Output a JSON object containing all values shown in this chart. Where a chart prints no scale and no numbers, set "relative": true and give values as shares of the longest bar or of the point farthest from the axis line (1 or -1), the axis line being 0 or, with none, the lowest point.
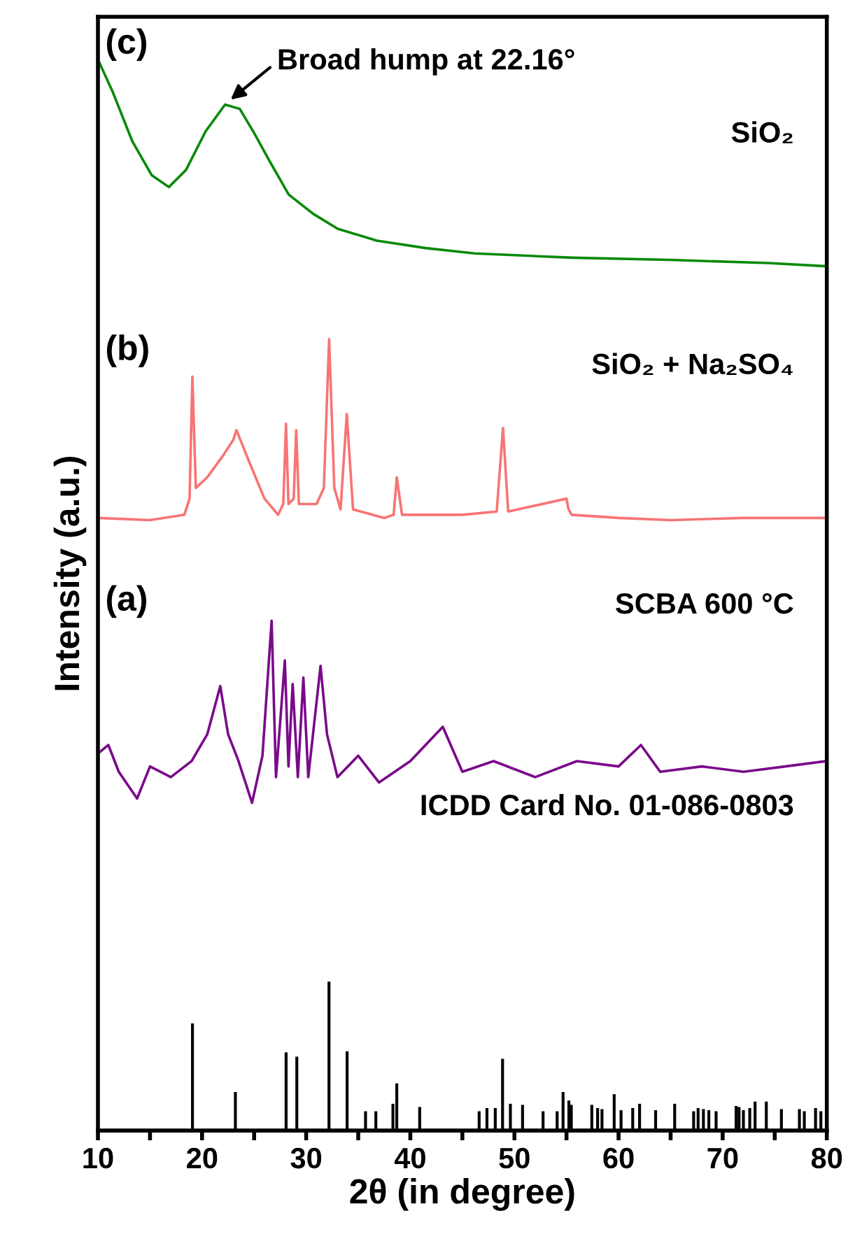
{
  "chart_data": {
    "type": "line",
    "relative": true,
    "xlabel": "2θ (in degree)",
    "ylabel": "Intensity (a.u.)",
    "xlim": [
      10,
      80
    ],
    "xticks": [
      10,
      {
        "value": 15,
        "label": null
      },
      20,
      {
        "value": 25,
        "label": null
      },
      30,
      {
        "value": 35,
        "label": null
      },
      40,
      {
        "value": 45,
        "label": null
      },
      50,
      {
        "value": 55,
        "label": null
      },
      60,
      {
        "value": 65,
        "label": null
      },
      70,
      {
        "value": 75,
        "label": null
      },
      80
    ],
    "tick_labels": "x",
    "grid": false,
    "legend": false,
    "marker": "none",
    "line_style": "solid",
    "annotations": [
      "(c)",
      "SiO₂",
      "(b)",
      "SiO₂ + Na₂SO₄",
      "(a)",
      "SCBA 600 °C",
      "ICDD Card No. 01-086-0803",
      {
        "text": "Broad hump at 22.16°",
        "x": 22.16,
        "y": 0.958
      }
    ],
    "series": [
      {
        "color": "#0a8a0a",
        "x": [
          10,
          11.41,
          13.29,
          15.17,
          16.81,
          18.46,
          20.34,
          22.21,
          23.62,
          25.03,
          26.44,
          28.32,
          30.67,
          33.02,
          36.78,
          41.48,
          46.17,
          55.57,
          64.97,
          74.36,
          80
        ],
        "values": [
          1,
          0.97,
          0.924,
          0.892,
          0.881,
          0.897,
          0.933,
          0.958,
          0.954,
          0.931,
          0.906,
          0.874,
          0.856,
          0.842,
          0.831,
          0.824,
          0.819,
          0.815,
          0.813,
          0.81,
          0.807
        ]
      },
      {
        "color": "#f87474",
        "x": [
          10,
          15,
          18.3,
          18.8,
          19.07,
          19.4,
          20.5,
          22.0,
          23.0,
          23.3,
          24.5,
          26,
          27.3,
          27.8,
          28.06,
          28.3,
          28.8,
          29.04,
          29.3,
          31.0,
          31.7,
          32.2,
          32.7,
          33.3,
          33.9,
          34.5,
          37.5,
          38.4,
          38.7,
          39.2,
          45,
          48.3,
          48.9,
          49.4,
          55,
          55.2,
          55.5,
          60,
          65,
          72,
          80
        ],
        "values": [
          0.572,
          0.57,
          0.575,
          0.59,
          0.704,
          0.6,
          0.61,
          0.63,
          0.645,
          0.654,
          0.625,
          0.59,
          0.575,
          0.585,
          0.66,
          0.585,
          0.59,
          0.654,
          0.585,
          0.585,
          0.6,
          0.739,
          0.6,
          0.58,
          0.669,
          0.58,
          0.572,
          0.575,
          0.61,
          0.575,
          0.575,
          0.578,
          0.656,
          0.578,
          0.59,
          0.58,
          0.575,
          0.572,
          0.57,
          0.572,
          0.572
        ]
      },
      {
        "color": "#7a0a8a",
        "x": [
          10,
          11,
          12,
          13.76,
          15,
          17,
          19,
          20.5,
          21.75,
          22.5,
          23.5,
          24.8,
          25.8,
          26.68,
          27.1,
          27.95,
          28.3,
          28.7,
          29.2,
          29.73,
          30.2,
          31.38,
          32.0,
          33,
          35,
          37,
          40,
          43.12,
          45,
          48,
          52,
          56,
          60,
          62.15,
          64,
          68,
          72,
          76,
          80
        ],
        "values": [
          0.352,
          0.36,
          0.335,
          0.31,
          0.34,
          0.33,
          0.345,
          0.37,
          0.415,
          0.37,
          0.345,
          0.306,
          0.35,
          0.476,
          0.33,
          0.439,
          0.34,
          0.417,
          0.33,
          0.423,
          0.33,
          0.434,
          0.37,
          0.33,
          0.35,
          0.325,
          0.345,
          0.377,
          0.335,
          0.345,
          0.33,
          0.345,
          0.34,
          0.36,
          0.335,
          0.34,
          0.335,
          0.34,
          0.345
        ]
      },
      {
        "type": "bar",
        "color": "#000000",
        "x": [
          19.08,
          23.2,
          28.07,
          29.1,
          32.19,
          33.93,
          35.7,
          36.69,
          38.33,
          38.7,
          40.9,
          46.61,
          47.36,
          48.16,
          48.86,
          49.61,
          50.78,
          52.75,
          54.1,
          54.67,
          55.23,
          55.46,
          57.43,
          57.99,
          58.41,
          59.58,
          60.24,
          61.36,
          62.02,
          63.56,
          65.39,
          67.21,
          67.64,
          68.15,
          68.67,
          69.37,
          71.29,
          71.57,
          71.99,
          72.6,
          73.11,
          74.19,
          75.64,
          77.37,
          77.84,
          78.92,
          79.43
        ],
        "values": [
          0.1,
          0.036,
          0.073,
          0.069,
          0.139,
          0.074,
          0.018,
          0.018,
          0.025,
          0.044,
          0.022,
          0.018,
          0.021,
          0.021,
          0.067,
          0.025,
          0.024,
          0.018,
          0.018,
          0.036,
          0.028,
          0.024,
          0.024,
          0.021,
          0.02,
          0.034,
          0.019,
          0.021,
          0.025,
          0.019,
          0.025,
          0.018,
          0.021,
          0.02,
          0.019,
          0.018,
          0.023,
          0.022,
          0.019,
          0.021,
          0.027,
          0.027,
          0.02,
          0.02,
          0.018,
          0.021,
          0.018
        ]
      }
    ]
  }
}
